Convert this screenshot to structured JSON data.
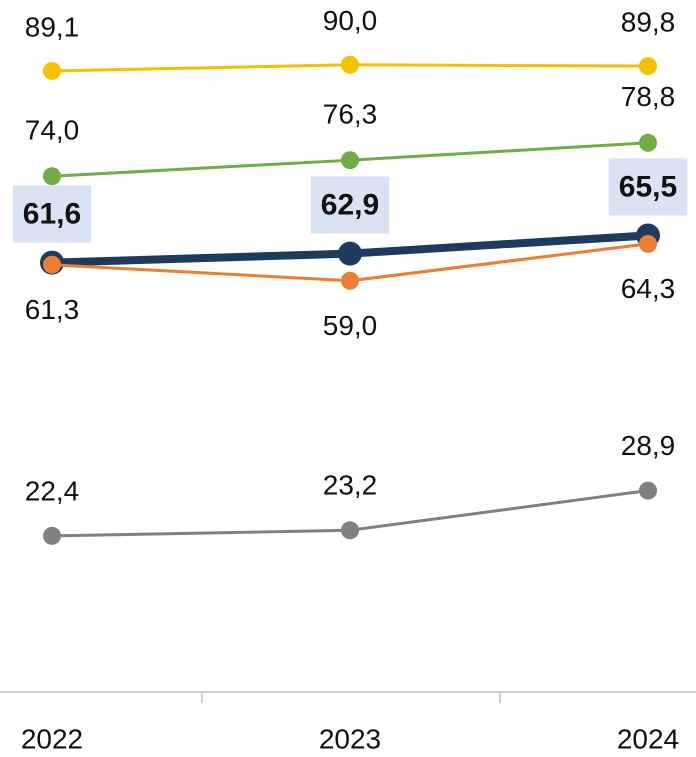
{
  "chart_data": {
    "type": "line",
    "categories": [
      "2022",
      "2023",
      "2024"
    ],
    "ylim": [
      0,
      100
    ],
    "series": [
      {
        "color": "#f5c000",
        "values": [
          89.1,
          90.0,
          89.8
        ],
        "value_labels": [
          "89,1",
          "90,0",
          "89,8"
        ]
      },
      {
        "color": "#70ad47",
        "values": [
          74.0,
          76.3,
          78.8
        ],
        "value_labels": [
          "74,0",
          "76,3",
          "78,8"
        ]
      },
      {
        "color": "#1f3a5f",
        "values": [
          61.6,
          62.9,
          65.5
        ],
        "value_labels": [
          "61,6",
          "62,9",
          "65,5"
        ]
      },
      {
        "color": "#ed7d31",
        "values": [
          61.3,
          59.0,
          64.3
        ],
        "value_labels": [
          "61,3",
          "59,0",
          "64,3"
        ]
      },
      {
        "color": "#808080",
        "values": [
          22.4,
          23.2,
          28.9
        ],
        "value_labels": [
          "22,4",
          "23,2",
          "28,9"
        ]
      }
    ]
  }
}
